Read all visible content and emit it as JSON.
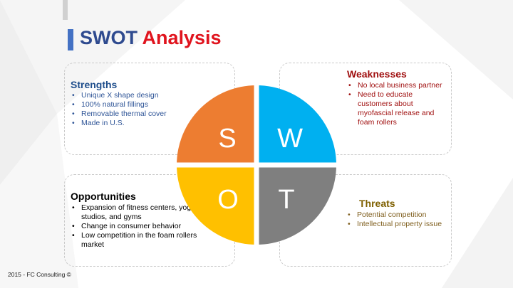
{
  "slide": {
    "title_part1": "SWOT",
    "title_part2": "Analysis",
    "footer": "2015 - FC Consulting ©"
  },
  "colors": {
    "title_blue": "#2e4a8f",
    "title_red": "#e0141e",
    "strengths": "#ed7d31",
    "weaknesses": "#00b0f0",
    "opportunities": "#ffc000",
    "threats": "#7f7f7f"
  },
  "quadrants": {
    "s": {
      "letter": "S"
    },
    "w": {
      "letter": "W"
    },
    "o": {
      "letter": "O"
    },
    "t": {
      "letter": "T"
    }
  },
  "strengths": {
    "heading": "Strengths",
    "items": [
      "Unique X shape design",
      "100% natural fillings",
      "Removable thermal cover",
      "Made in U.S."
    ]
  },
  "weaknesses": {
    "heading": "Weaknesses",
    "items": [
      "No local business partner",
      "Need to educate customers about myofascial release and foam rollers"
    ]
  },
  "opportunities": {
    "heading": "Opportunities",
    "items": [
      "Expansion of fitness centers, yoga studios, and gyms",
      "Change in consumer behavior",
      "Low competition in the foam rollers market"
    ]
  },
  "threats": {
    "heading": "Threats",
    "items": [
      "Potential competition",
      "Intellectual property issue"
    ]
  }
}
